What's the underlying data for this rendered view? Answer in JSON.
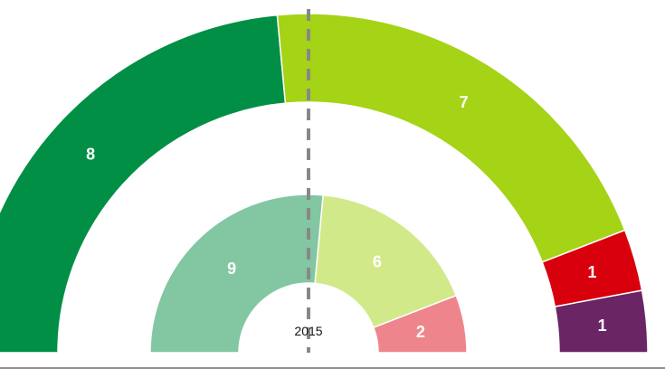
{
  "chart_data": {
    "type": "pie",
    "subtype": "parliament-semicircle-comparison",
    "center_label": "2015",
    "rings": [
      {
        "ring": "outer",
        "segments": [
          {
            "value": 8,
            "label": "8",
            "color": "#008f45"
          },
          {
            "value": 7,
            "label": "7",
            "color": "#a5d316"
          },
          {
            "value": 1,
            "label": "1",
            "color": "#d9000d"
          },
          {
            "value": 1,
            "label": "1",
            "color": "#6a2565"
          }
        ]
      },
      {
        "ring": "inner",
        "segments": [
          {
            "value": 9,
            "label": "9",
            "color": "#82c6a2"
          },
          {
            "value": 6,
            "label": "6",
            "color": "#d2e98a"
          },
          {
            "value": 2,
            "label": "2",
            "color": "#ef858c"
          }
        ]
      }
    ],
    "divider": {
      "style": "dashed",
      "color": "#888888"
    },
    "baseline_color": "#222222"
  }
}
